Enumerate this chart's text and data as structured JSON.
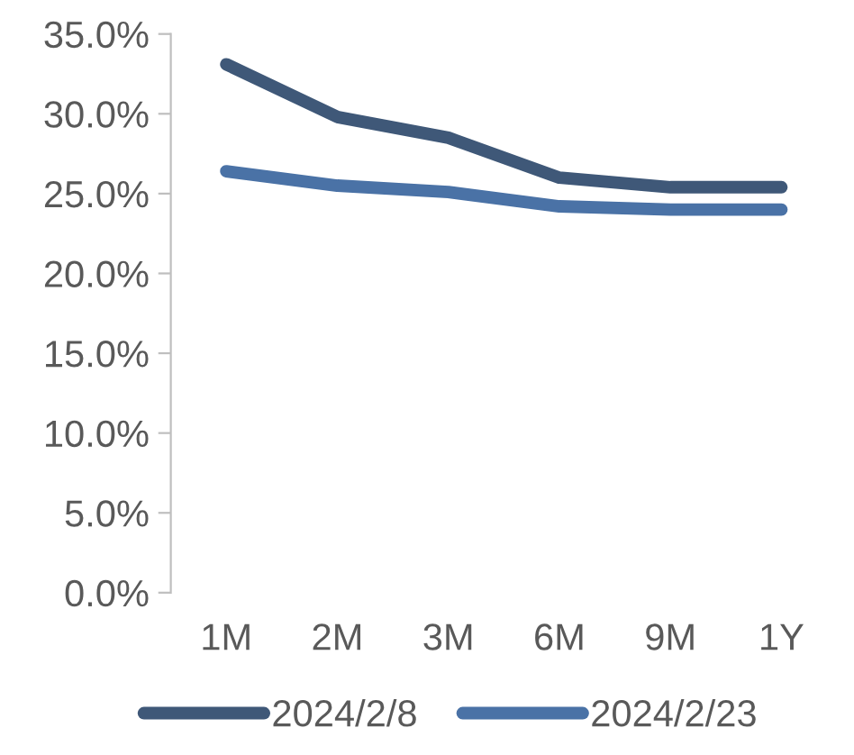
{
  "chart_data": {
    "type": "line",
    "categories": [
      "1M",
      "2M",
      "3M",
      "6M",
      "9M",
      "1Y"
    ],
    "series": [
      {
        "name": "2024/2/8",
        "color": "#3f5878",
        "values": [
          33.1,
          29.8,
          28.5,
          26.0,
          25.4,
          25.4
        ]
      },
      {
        "name": "2024/2/23",
        "color": "#4a72a6",
        "values": [
          26.4,
          25.5,
          25.1,
          24.2,
          24.0,
          24.0
        ]
      }
    ],
    "ylim": [
      0,
      35
    ],
    "yticks": [
      {
        "value": 0,
        "label": "0.0%"
      },
      {
        "value": 5,
        "label": "5.0%"
      },
      {
        "value": 10,
        "label": "10.0%"
      },
      {
        "value": 15,
        "label": "15.0%"
      },
      {
        "value": 20,
        "label": "20.0%"
      },
      {
        "value": 25,
        "label": "25.0%"
      },
      {
        "value": 30,
        "label": "30.0%"
      },
      {
        "value": 35,
        "label": "35.0%"
      }
    ],
    "grid": false,
    "legend": "bottom",
    "marker": "none",
    "line_style": "solid"
  }
}
